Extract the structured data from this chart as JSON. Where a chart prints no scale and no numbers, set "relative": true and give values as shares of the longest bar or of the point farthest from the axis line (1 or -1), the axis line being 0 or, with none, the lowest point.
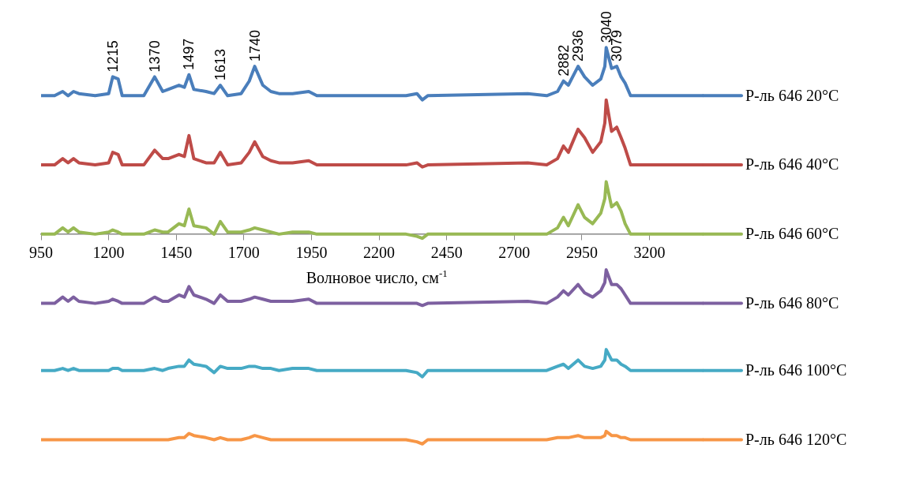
{
  "chart_data": {
    "type": "line",
    "relative": true,
    "xlabel": "Волновое число, см$^{-1}$",
    "xlim": [
      950,
      3400
    ],
    "xticks": [
      950,
      1200,
      1450,
      1700,
      1950,
      2200,
      2450,
      2700,
      2950,
      3200
    ],
    "legend": "right",
    "grid": false,
    "marker": "none",
    "line_style": "solid",
    "x": [
      950,
      1000,
      1030,
      1050,
      1070,
      1090,
      1150,
      1200,
      1215,
      1235,
      1250,
      1330,
      1370,
      1400,
      1420,
      1460,
      1480,
      1497,
      1515,
      1560,
      1590,
      1613,
      1640,
      1690,
      1720,
      1740,
      1770,
      1800,
      1830,
      1880,
      1940,
      1970,
      2300,
      2340,
      2360,
      2380,
      2750,
      2820,
      2860,
      2882,
      2900,
      2936,
      2960,
      2990,
      3020,
      3035,
      3040,
      3060,
      3079,
      3095,
      3110,
      3130,
      3150,
      3400
    ],
    "series": [
      {
        "name": "Р-ль 646 20°C",
        "color": "#4a7ebb",
        "values": [
          0.66,
          0.66,
          0.68,
          0.66,
          0.68,
          0.67,
          0.66,
          0.67,
          0.75,
          0.74,
          0.66,
          0.66,
          0.75,
          0.68,
          0.69,
          0.71,
          0.7,
          0.76,
          0.69,
          0.68,
          0.67,
          0.71,
          0.66,
          0.67,
          0.73,
          0.8,
          0.71,
          0.68,
          0.67,
          0.67,
          0.68,
          0.66,
          0.66,
          0.67,
          0.64,
          0.66,
          0.67,
          0.66,
          0.68,
          0.73,
          0.71,
          0.8,
          0.75,
          0.71,
          0.74,
          0.8,
          0.89,
          0.79,
          0.8,
          0.75,
          0.72,
          0.66,
          0.66,
          0.66
        ]
      },
      {
        "name": "Р-ль 646 40°C",
        "color": "#be4b48",
        "values": [
          0.33,
          0.33,
          0.36,
          0.34,
          0.36,
          0.34,
          0.33,
          0.34,
          0.39,
          0.38,
          0.33,
          0.33,
          0.4,
          0.36,
          0.36,
          0.38,
          0.37,
          0.47,
          0.36,
          0.34,
          0.34,
          0.39,
          0.33,
          0.34,
          0.39,
          0.44,
          0.37,
          0.35,
          0.34,
          0.34,
          0.35,
          0.33,
          0.33,
          0.34,
          0.32,
          0.33,
          0.34,
          0.33,
          0.36,
          0.42,
          0.39,
          0.5,
          0.46,
          0.39,
          0.44,
          0.53,
          0.64,
          0.49,
          0.51,
          0.46,
          0.41,
          0.33,
          0.33,
          0.33
        ]
      },
      {
        "name": "Р-ль 646 60°C",
        "color": "#98b954",
        "values": [
          0,
          0,
          0.03,
          0.01,
          0.03,
          0.01,
          0,
          0.01,
          0.02,
          0.01,
          0,
          0,
          0.02,
          0.01,
          0.01,
          0.05,
          0.04,
          0.12,
          0.04,
          0.03,
          0,
          0.06,
          0.01,
          0.01,
          0.02,
          0.03,
          0.02,
          0.01,
          0,
          0.01,
          0.01,
          0,
          0,
          -0.01,
          -0.02,
          0,
          0,
          0,
          0.03,
          0.08,
          0.04,
          0.14,
          0.08,
          0.05,
          0.1,
          0.17,
          0.25,
          0.13,
          0.15,
          0.11,
          0.05,
          0,
          0,
          0
        ]
      },
      {
        "name": "Р-ль 646 80°C",
        "color": "#7d60a0",
        "values": [
          -0.33,
          -0.33,
          -0.3,
          -0.32,
          -0.3,
          -0.32,
          -0.33,
          -0.32,
          -0.31,
          -0.32,
          -0.33,
          -0.33,
          -0.3,
          -0.32,
          -0.32,
          -0.29,
          -0.3,
          -0.25,
          -0.29,
          -0.31,
          -0.33,
          -0.29,
          -0.32,
          -0.32,
          -0.31,
          -0.3,
          -0.31,
          -0.32,
          -0.32,
          -0.32,
          -0.31,
          -0.33,
          -0.33,
          -0.33,
          -0.34,
          -0.33,
          -0.32,
          -0.33,
          -0.3,
          -0.27,
          -0.29,
          -0.24,
          -0.28,
          -0.3,
          -0.27,
          -0.23,
          -0.17,
          -0.24,
          -0.24,
          -0.26,
          -0.29,
          -0.33,
          -0.33,
          -0.33
        ]
      },
      {
        "name": "Р-ль 646 100°C",
        "color": "#46aac5",
        "values": [
          -0.65,
          -0.65,
          -0.64,
          -0.65,
          -0.64,
          -0.65,
          -0.65,
          -0.65,
          -0.64,
          -0.64,
          -0.65,
          -0.65,
          -0.64,
          -0.65,
          -0.64,
          -0.63,
          -0.63,
          -0.6,
          -0.62,
          -0.63,
          -0.66,
          -0.63,
          -0.64,
          -0.64,
          -0.63,
          -0.63,
          -0.64,
          -0.64,
          -0.65,
          -0.64,
          -0.64,
          -0.65,
          -0.65,
          -0.66,
          -0.68,
          -0.65,
          -0.65,
          -0.65,
          -0.63,
          -0.62,
          -0.64,
          -0.6,
          -0.63,
          -0.64,
          -0.63,
          -0.6,
          -0.55,
          -0.6,
          -0.6,
          -0.62,
          -0.63,
          -0.65,
          -0.65,
          -0.65
        ]
      },
      {
        "name": "Р-ль 646 120°C",
        "color": "#f79646",
        "values": [
          -0.98,
          -0.98,
          -0.98,
          -0.98,
          -0.98,
          -0.98,
          -0.98,
          -0.98,
          -0.98,
          -0.98,
          -0.98,
          -0.98,
          -0.98,
          -0.98,
          -0.98,
          -0.97,
          -0.97,
          -0.95,
          -0.96,
          -0.97,
          -0.98,
          -0.97,
          -0.98,
          -0.98,
          -0.97,
          -0.96,
          -0.97,
          -0.98,
          -0.98,
          -0.98,
          -0.98,
          -0.98,
          -0.98,
          -0.99,
          -1.0,
          -0.98,
          -0.98,
          -0.98,
          -0.97,
          -0.97,
          -0.97,
          -0.96,
          -0.97,
          -0.97,
          -0.97,
          -0.96,
          -0.94,
          -0.96,
          -0.96,
          -0.97,
          -0.97,
          -0.98,
          -0.98,
          -0.98
        ]
      }
    ],
    "annotations": [
      {
        "text": "1215",
        "x": 1215,
        "y": 0.75
      },
      {
        "text": "1370",
        "x": 1370,
        "y": 0.75
      },
      {
        "text": "1497",
        "x": 1497,
        "y": 0.76
      },
      {
        "text": "1613",
        "x": 1613,
        "y": 0.71
      },
      {
        "text": "1740",
        "x": 1740,
        "y": 0.8
      },
      {
        "text": "2882",
        "x": 2882,
        "y": 0.73
      },
      {
        "text": "2936",
        "x": 2936,
        "y": 0.8
      },
      {
        "text": "3040",
        "x": 3040,
        "y": 0.89
      },
      {
        "text": "3079",
        "x": 3079,
        "y": 0.8
      }
    ]
  }
}
